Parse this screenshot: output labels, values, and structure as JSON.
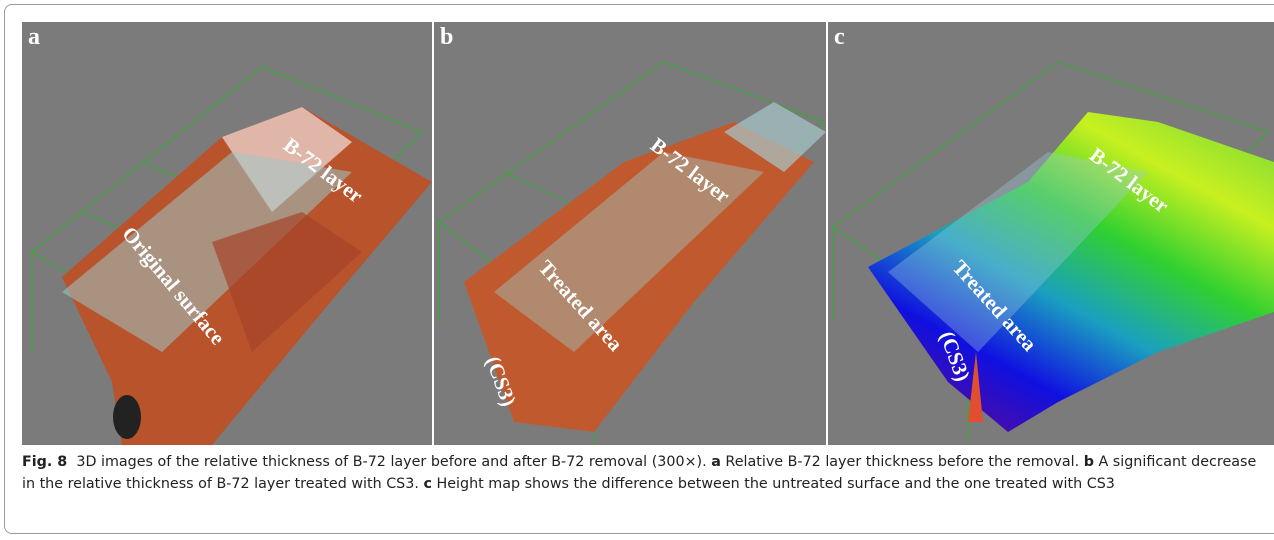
{
  "figure": {
    "panels": [
      {
        "letter": "a",
        "labels": [
          "B-72 layer",
          "Original surface"
        ]
      },
      {
        "letter": "b",
        "labels": [
          "B-72 layer",
          "Treated area",
          "(CS3)"
        ]
      },
      {
        "letter": "c",
        "labels": [
          "B-72 layer",
          "Treated area",
          "(CS3)"
        ]
      }
    ],
    "caption": {
      "label": "Fig. 8",
      "text": "3D images of the relative thickness of B-72 layer before and after B-72 removal (300×).",
      "parts": [
        {
          "label": "a",
          "text": "Relative B-72 layer thickness before the removal."
        },
        {
          "label": "b",
          "text": "A significant decrease in the relative thickness of B-72 layer treated with CS3."
        },
        {
          "label": "c",
          "text": "Height map shows the difference between the untreated surface and the one treated with CS3"
        }
      ]
    }
  }
}
